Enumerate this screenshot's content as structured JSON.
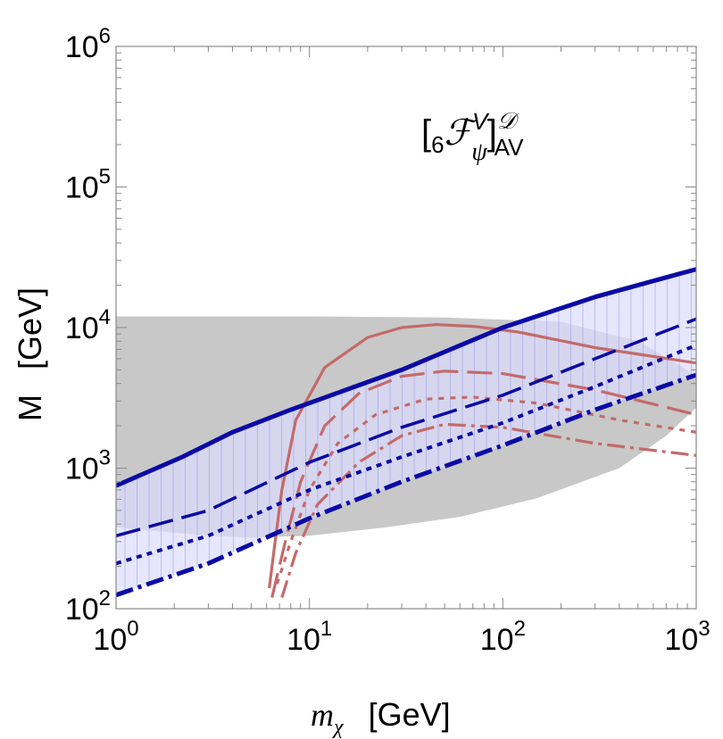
{
  "chart_data": {
    "type": "line",
    "title": "",
    "label": {
      "open": "[",
      "pre": "6",
      "main": "ℱ",
      "sup": "V",
      "sub": "ψ",
      "close": "]",
      "sup2": "𝒟",
      "sub2": "AV"
    },
    "xlabel": {
      "symbol": "m",
      "sub": "χ",
      "unit": "[GeV]"
    },
    "ylabel": {
      "symbol": "M",
      "unit": "[GeV]"
    },
    "xscale": "log",
    "yscale": "log",
    "xlim": [
      1,
      1000
    ],
    "ylim": [
      100,
      1000000
    ],
    "xticks": [
      {
        "base": "10",
        "exp": "0",
        "v": 1
      },
      {
        "base": "10",
        "exp": "1",
        "v": 10
      },
      {
        "base": "10",
        "exp": "2",
        "v": 100
      },
      {
        "base": "10",
        "exp": "3",
        "v": 1000
      }
    ],
    "yticks": [
      {
        "base": "10",
        "exp": "2",
        "v": 100
      },
      {
        "base": "10",
        "exp": "3",
        "v": 1000
      },
      {
        "base": "10",
        "exp": "4",
        "v": 10000
      },
      {
        "base": "10",
        "exp": "5",
        "v": 100000
      },
      {
        "base": "10",
        "exp": "6",
        "v": 1000000
      }
    ],
    "colors": {
      "grey": "#c8c8c8",
      "blue": "#0a0aa6",
      "band": "#dcdcff",
      "red": "#c46a6a",
      "frame": "#888888"
    },
    "grey_region": [
      [
        1,
        12000
      ],
      [
        10,
        12000
      ],
      [
        50,
        11800
      ],
      [
        200,
        11000
      ],
      [
        500,
        8000
      ],
      [
        800,
        5500
      ],
      [
        1000,
        4500
      ],
      [
        1000,
        2700
      ],
      [
        700,
        1700
      ],
      [
        400,
        1000
      ],
      [
        150,
        610
      ],
      [
        60,
        450
      ],
      [
        25,
        380
      ],
      [
        10,
        330
      ],
      [
        5,
        320
      ],
      [
        3,
        330
      ],
      [
        1.5,
        360
      ],
      [
        1,
        380
      ]
    ],
    "blue_lines": [
      {
        "name": "solid",
        "dash": "",
        "width": 5,
        "points": [
          [
            1,
            750
          ],
          [
            2.2,
            1200
          ],
          [
            4,
            1800
          ],
          [
            8,
            2600
          ],
          [
            30,
            5000
          ],
          [
            100,
            10000
          ],
          [
            300,
            16500
          ],
          [
            1000,
            26000
          ]
        ]
      },
      {
        "name": "long-dash",
        "dash": "28 10",
        "width": 3.5,
        "points": [
          [
            1,
            330
          ],
          [
            3,
            500
          ],
          [
            10,
            1100
          ],
          [
            30,
            1950
          ],
          [
            100,
            3300
          ],
          [
            300,
            6000
          ],
          [
            1000,
            11500
          ]
        ]
      },
      {
        "name": "short-dash",
        "dash": "6 6",
        "width": 4,
        "points": [
          [
            1,
            210
          ],
          [
            3,
            330
          ],
          [
            10,
            700
          ],
          [
            30,
            1200
          ],
          [
            100,
            2100
          ],
          [
            300,
            3800
          ],
          [
            1000,
            7500
          ]
        ]
      },
      {
        "name": "dash-dot",
        "dash": "20 6 4 6",
        "width": 5,
        "points": [
          [
            1,
            125
          ],
          [
            3,
            210
          ],
          [
            10,
            440
          ],
          [
            30,
            800
          ],
          [
            100,
            1450
          ],
          [
            300,
            2600
          ],
          [
            1000,
            4600
          ]
        ]
      }
    ],
    "red_lines": [
      {
        "name": "solid",
        "dash": "",
        "points": [
          [
            6.2,
            140
          ],
          [
            6.6,
            280
          ],
          [
            7.2,
            700
          ],
          [
            8.5,
            2200
          ],
          [
            12,
            5200
          ],
          [
            20,
            8500
          ],
          [
            30,
            10000
          ],
          [
            45,
            10500
          ],
          [
            70,
            10200
          ],
          [
            120,
            9300
          ],
          [
            300,
            7200
          ],
          [
            1000,
            5600
          ]
        ]
      },
      {
        "name": "long-dash",
        "dash": "28 10",
        "points": [
          [
            6.4,
            120
          ],
          [
            7.5,
            300
          ],
          [
            9,
            800
          ],
          [
            12,
            2000
          ],
          [
            18,
            3400
          ],
          [
            30,
            4500
          ],
          [
            50,
            4900
          ],
          [
            100,
            4700
          ],
          [
            300,
            3600
          ],
          [
            1000,
            2400
          ]
        ]
      },
      {
        "name": "short-dash",
        "dash": "6 7",
        "points": [
          [
            6.8,
            150
          ],
          [
            8,
            300
          ],
          [
            10,
            700
          ],
          [
            14,
            1500
          ],
          [
            22,
            2400
          ],
          [
            40,
            3100
          ],
          [
            70,
            3200
          ],
          [
            150,
            2900
          ],
          [
            400,
            2200
          ],
          [
            1000,
            1800
          ]
        ]
      },
      {
        "name": "dash-dot",
        "dash": "20 6 4 6",
        "points": [
          [
            7.2,
            120
          ],
          [
            8.5,
            250
          ],
          [
            11,
            550
          ],
          [
            18,
            1100
          ],
          [
            30,
            1700
          ],
          [
            50,
            2050
          ],
          [
            100,
            1950
          ],
          [
            300,
            1500
          ],
          [
            1000,
            1230
          ]
        ]
      }
    ]
  }
}
